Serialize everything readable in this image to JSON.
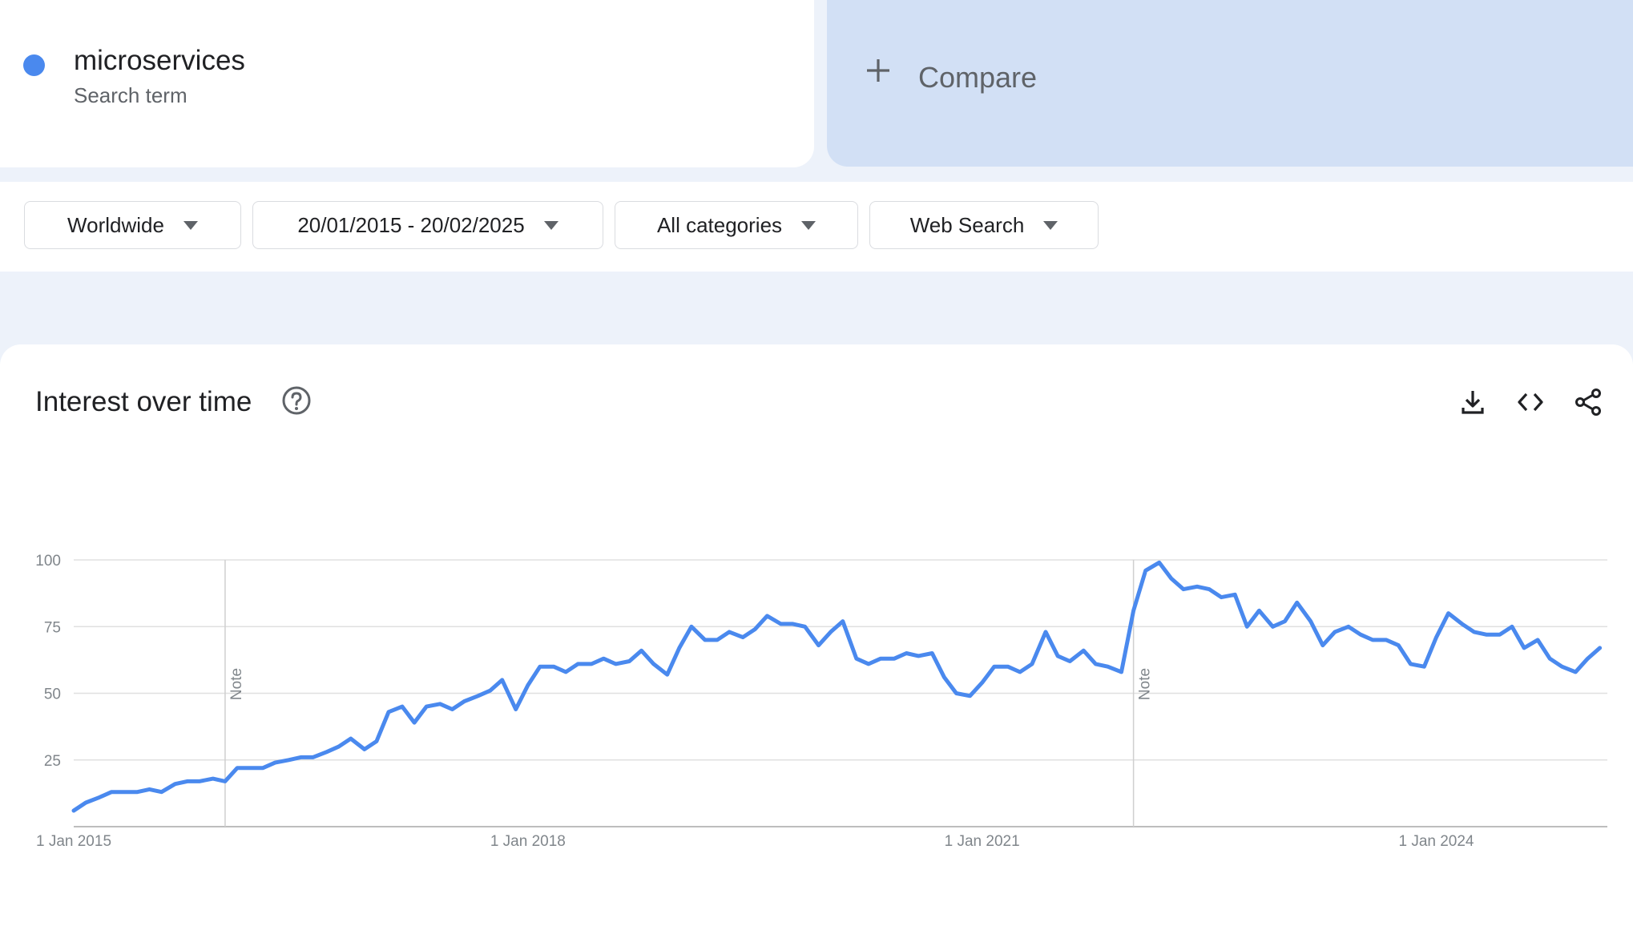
{
  "search_term": {
    "name": "microservices",
    "subtitle": "Search term",
    "color": "#4a89ee"
  },
  "compare": {
    "label": "Compare",
    "icon": "plus-icon"
  },
  "filters": {
    "region": "Worldwide",
    "date_range": "20/01/2015 - 20/02/2025",
    "category": "All categories",
    "search_type": "Web Search"
  },
  "chart_card": {
    "title": "Interest over time",
    "icons": [
      "help-icon",
      "download-icon",
      "embed-icon",
      "share-icon"
    ]
  },
  "chart_data": {
    "type": "line",
    "title": "",
    "xlabel": "",
    "ylabel": "",
    "ylim": [
      0,
      100
    ],
    "yticks": [
      25,
      50,
      75,
      100
    ],
    "xticks": [
      {
        "label": "1 Jan 2015",
        "x": 2015.0
      },
      {
        "label": "1 Jan 2018",
        "x": 2018.0
      },
      {
        "label": "1 Jan 2021",
        "x": 2021.0
      },
      {
        "label": "1 Jan 2024",
        "x": 2024.0
      }
    ],
    "xlim": [
      2015.0,
      2025.13
    ],
    "grid": true,
    "legend": "none",
    "annotations": [
      {
        "label": "Note",
        "x": 2016.0
      },
      {
        "label": "Note",
        "x": 2022.0
      }
    ],
    "series": [
      {
        "color": "#4a89ee",
        "x": [
          2015.0,
          2015.08,
          2015.17,
          2015.25,
          2015.33,
          2015.42,
          2015.5,
          2015.58,
          2015.67,
          2015.75,
          2015.83,
          2015.92,
          2016.0,
          2016.08,
          2016.17,
          2016.25,
          2016.33,
          2016.42,
          2016.5,
          2016.58,
          2016.67,
          2016.75,
          2016.83,
          2016.92,
          2017.0,
          2017.08,
          2017.17,
          2017.25,
          2017.33,
          2017.42,
          2017.5,
          2017.58,
          2017.67,
          2017.75,
          2017.83,
          2017.92,
          2018.0,
          2018.08,
          2018.17,
          2018.25,
          2018.33,
          2018.42,
          2018.5,
          2018.58,
          2018.67,
          2018.75,
          2018.83,
          2018.92,
          2019.0,
          2019.08,
          2019.17,
          2019.25,
          2019.33,
          2019.42,
          2019.5,
          2019.58,
          2019.67,
          2019.75,
          2019.83,
          2019.92,
          2020.0,
          2020.08,
          2020.17,
          2020.25,
          2020.33,
          2020.42,
          2020.5,
          2020.58,
          2020.67,
          2020.75,
          2020.83,
          2020.92,
          2021.0,
          2021.08,
          2021.17,
          2021.25,
          2021.33,
          2021.42,
          2021.5,
          2021.58,
          2021.67,
          2021.75,
          2021.83,
          2021.92,
          2022.0,
          2022.08,
          2022.17,
          2022.25,
          2022.33,
          2022.42,
          2022.5,
          2022.58,
          2022.67,
          2022.75,
          2022.83,
          2022.92,
          2023.0,
          2023.08,
          2023.17,
          2023.25,
          2023.33,
          2023.42,
          2023.5,
          2023.58,
          2023.67,
          2023.75,
          2023.83,
          2023.92,
          2024.0,
          2024.08,
          2024.17,
          2024.25,
          2024.33,
          2024.42,
          2024.5,
          2024.58,
          2024.67,
          2024.75,
          2024.83,
          2024.92,
          2025.0,
          2025.08
        ],
        "values": [
          6,
          9,
          11,
          13,
          13,
          13,
          14,
          13,
          16,
          17,
          17,
          18,
          17,
          22,
          22,
          22,
          24,
          25,
          26,
          26,
          28,
          30,
          33,
          29,
          32,
          43,
          45,
          39,
          45,
          46,
          44,
          47,
          49,
          51,
          55,
          44,
          53,
          60,
          60,
          58,
          61,
          61,
          63,
          61,
          62,
          66,
          61,
          57,
          67,
          75,
          70,
          70,
          73,
          71,
          74,
          79,
          76,
          76,
          75,
          68,
          73,
          77,
          63,
          61,
          63,
          63,
          65,
          64,
          65,
          56,
          50,
          49,
          54,
          60,
          60,
          58,
          61,
          73,
          64,
          62,
          66,
          61,
          60,
          58,
          81,
          96,
          99,
          93,
          89,
          90,
          89,
          86,
          87,
          75,
          81,
          75,
          77,
          84,
          77,
          68,
          73,
          75,
          72,
          70,
          70,
          68,
          61,
          60,
          71,
          80,
          76,
          73,
          72,
          72,
          75,
          67,
          70,
          63,
          60,
          58,
          63,
          67
        ]
      }
    ]
  }
}
